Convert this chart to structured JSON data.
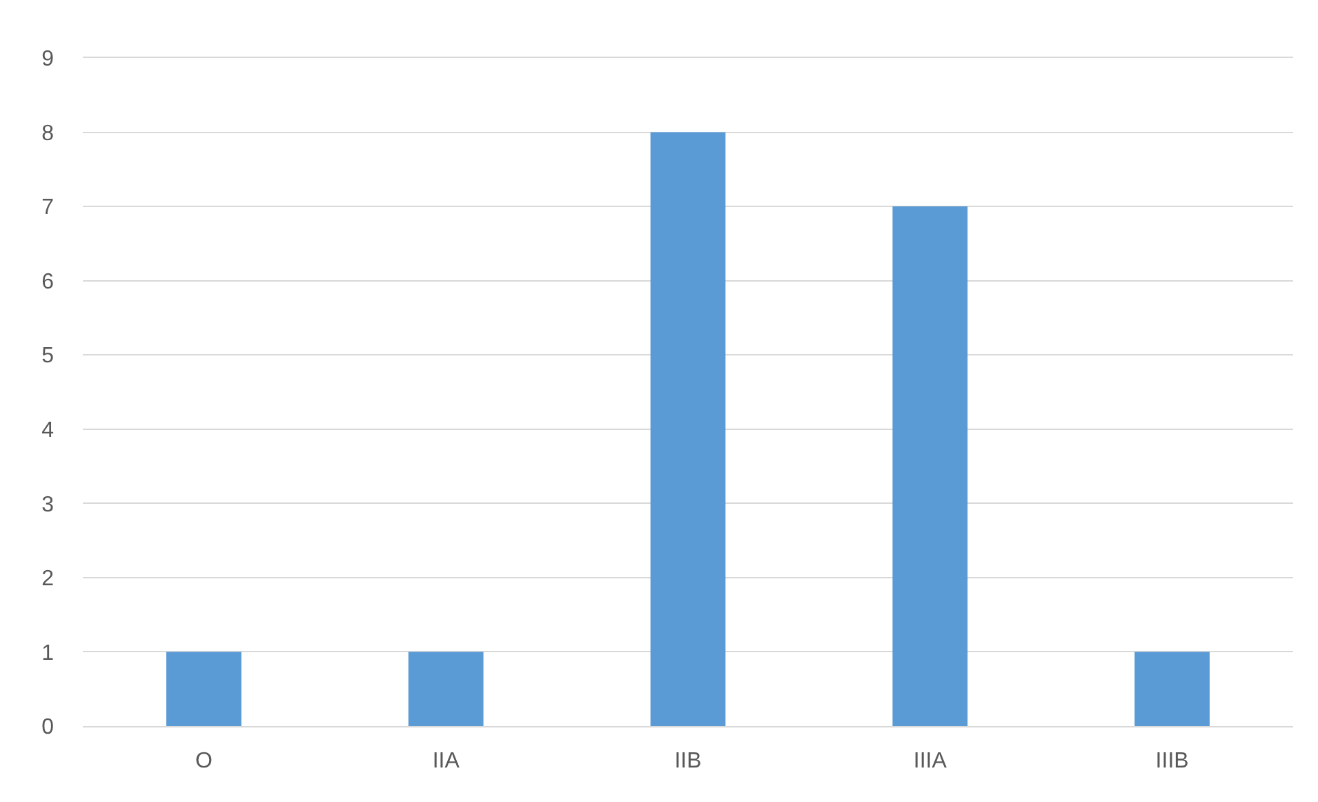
{
  "chart_data": {
    "type": "bar",
    "categories": [
      "O",
      "IIA",
      "IIB",
      "IIIA",
      "IIIB"
    ],
    "values": [
      1,
      1,
      8,
      7,
      1
    ],
    "color": "#5b9bd5",
    "ylim": [
      0,
      9
    ],
    "yticks": [
      0,
      1,
      2,
      3,
      4,
      5,
      6,
      7,
      8,
      9
    ],
    "grid": "y"
  }
}
